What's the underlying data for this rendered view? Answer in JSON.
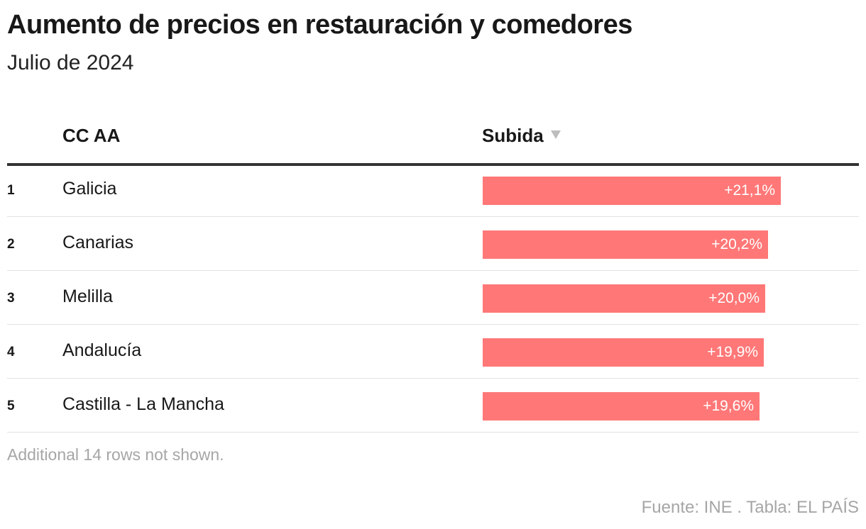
{
  "title": "Aumento de precios en restauración y comedores",
  "subtitle": "Julio de 2024",
  "columns": {
    "region": "CC AA",
    "value": "Subida"
  },
  "sort_icon": "sort-descending-icon",
  "note": "Additional 14 rows not shown.",
  "source": "Fuente: INE . Tabla: EL PAÍS",
  "colors": {
    "bar": "#ff7777",
    "text": "#181818",
    "muted": "#a6a6a6"
  },
  "chart_data": {
    "type": "table",
    "max_value": 21.1,
    "rows": [
      {
        "rank": "1",
        "name": "Galicia",
        "value": 21.1,
        "label": "+21,1%"
      },
      {
        "rank": "2",
        "name": "Canarias",
        "value": 20.2,
        "label": "+20,2%"
      },
      {
        "rank": "3",
        "name": "Melilla",
        "value": 20.0,
        "label": "+20,0%"
      },
      {
        "rank": "4",
        "name": "Andalucía",
        "value": 19.9,
        "label": "+19,9%"
      },
      {
        "rank": "5",
        "name": "Castilla - La Mancha",
        "value": 19.6,
        "label": "+19,6%"
      }
    ]
  }
}
